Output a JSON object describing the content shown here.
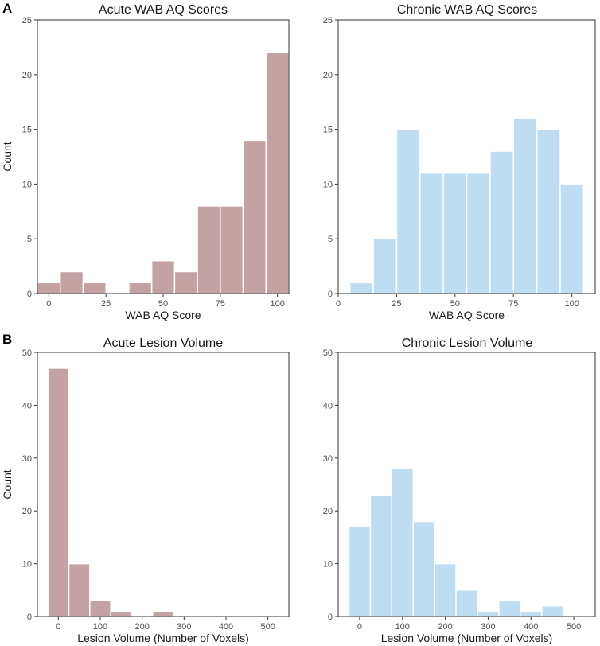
{
  "panel_labels": {
    "A": "A",
    "B": "B"
  },
  "colors": {
    "acute": "#c4a1a2",
    "chronic": "#bedcf2"
  },
  "chart_data": [
    {
      "type": "bar",
      "title": "Acute WAB AQ Scores",
      "xlabel": "WAB AQ Score",
      "ylabel": "Count",
      "xlim": [
        -5,
        105
      ],
      "ylim": [
        0,
        25
      ],
      "xticks": [
        0,
        25,
        50,
        75,
        100
      ],
      "yticks": [
        0,
        5,
        10,
        15,
        20,
        25
      ],
      "bin_width": 10,
      "bin_centers": [
        0,
        10,
        20,
        30,
        40,
        50,
        60,
        70,
        80,
        90,
        100
      ],
      "values": [
        1,
        2,
        1,
        0,
        1,
        3,
        2,
        8,
        8,
        14,
        22
      ]
    },
    {
      "type": "bar",
      "title": "Chronic WAB AQ Scores",
      "xlabel": "WAB AQ Score",
      "ylabel": "",
      "xlim": [
        0,
        110
      ],
      "ylim": [
        0,
        25
      ],
      "xticks": [
        0,
        25,
        50,
        75,
        100
      ],
      "yticks": [
        0,
        5,
        10,
        15,
        20,
        25
      ],
      "bin_width": 10,
      "bin_centers": [
        10,
        20,
        30,
        40,
        50,
        60,
        70,
        80,
        90,
        100
      ],
      "values": [
        1,
        5,
        15,
        11,
        11,
        11,
        13,
        16,
        15,
        10
      ]
    },
    {
      "type": "bar",
      "title": "Acute Lesion Volume",
      "xlabel": "Lesion Volume (Number of Voxels)",
      "ylabel": "Count",
      "xlim": [
        -50,
        550
      ],
      "ylim": [
        0,
        50
      ],
      "xticks": [
        0,
        100,
        200,
        300,
        400,
        500
      ],
      "yticks": [
        0,
        10,
        20,
        30,
        40,
        50
      ],
      "bin_width": 50,
      "bin_centers": [
        0,
        50,
        100,
        150,
        200,
        250
      ],
      "values": [
        47,
        10,
        3,
        1,
        0,
        1
      ]
    },
    {
      "type": "bar",
      "title": "Chronic Lesion Volume",
      "xlabel": "Lesion Volume (Number of Voxels)",
      "ylabel": "",
      "xlim": [
        -50,
        550
      ],
      "ylim": [
        0,
        50
      ],
      "xticks": [
        0,
        100,
        200,
        300,
        400,
        500
      ],
      "yticks": [
        0,
        10,
        20,
        30,
        40,
        50
      ],
      "bin_width": 50,
      "bin_centers": [
        0,
        50,
        100,
        150,
        200,
        250,
        300,
        350,
        400,
        450
      ],
      "values": [
        17,
        23,
        28,
        18,
        10,
        5,
        1,
        3,
        1,
        2
      ]
    }
  ]
}
